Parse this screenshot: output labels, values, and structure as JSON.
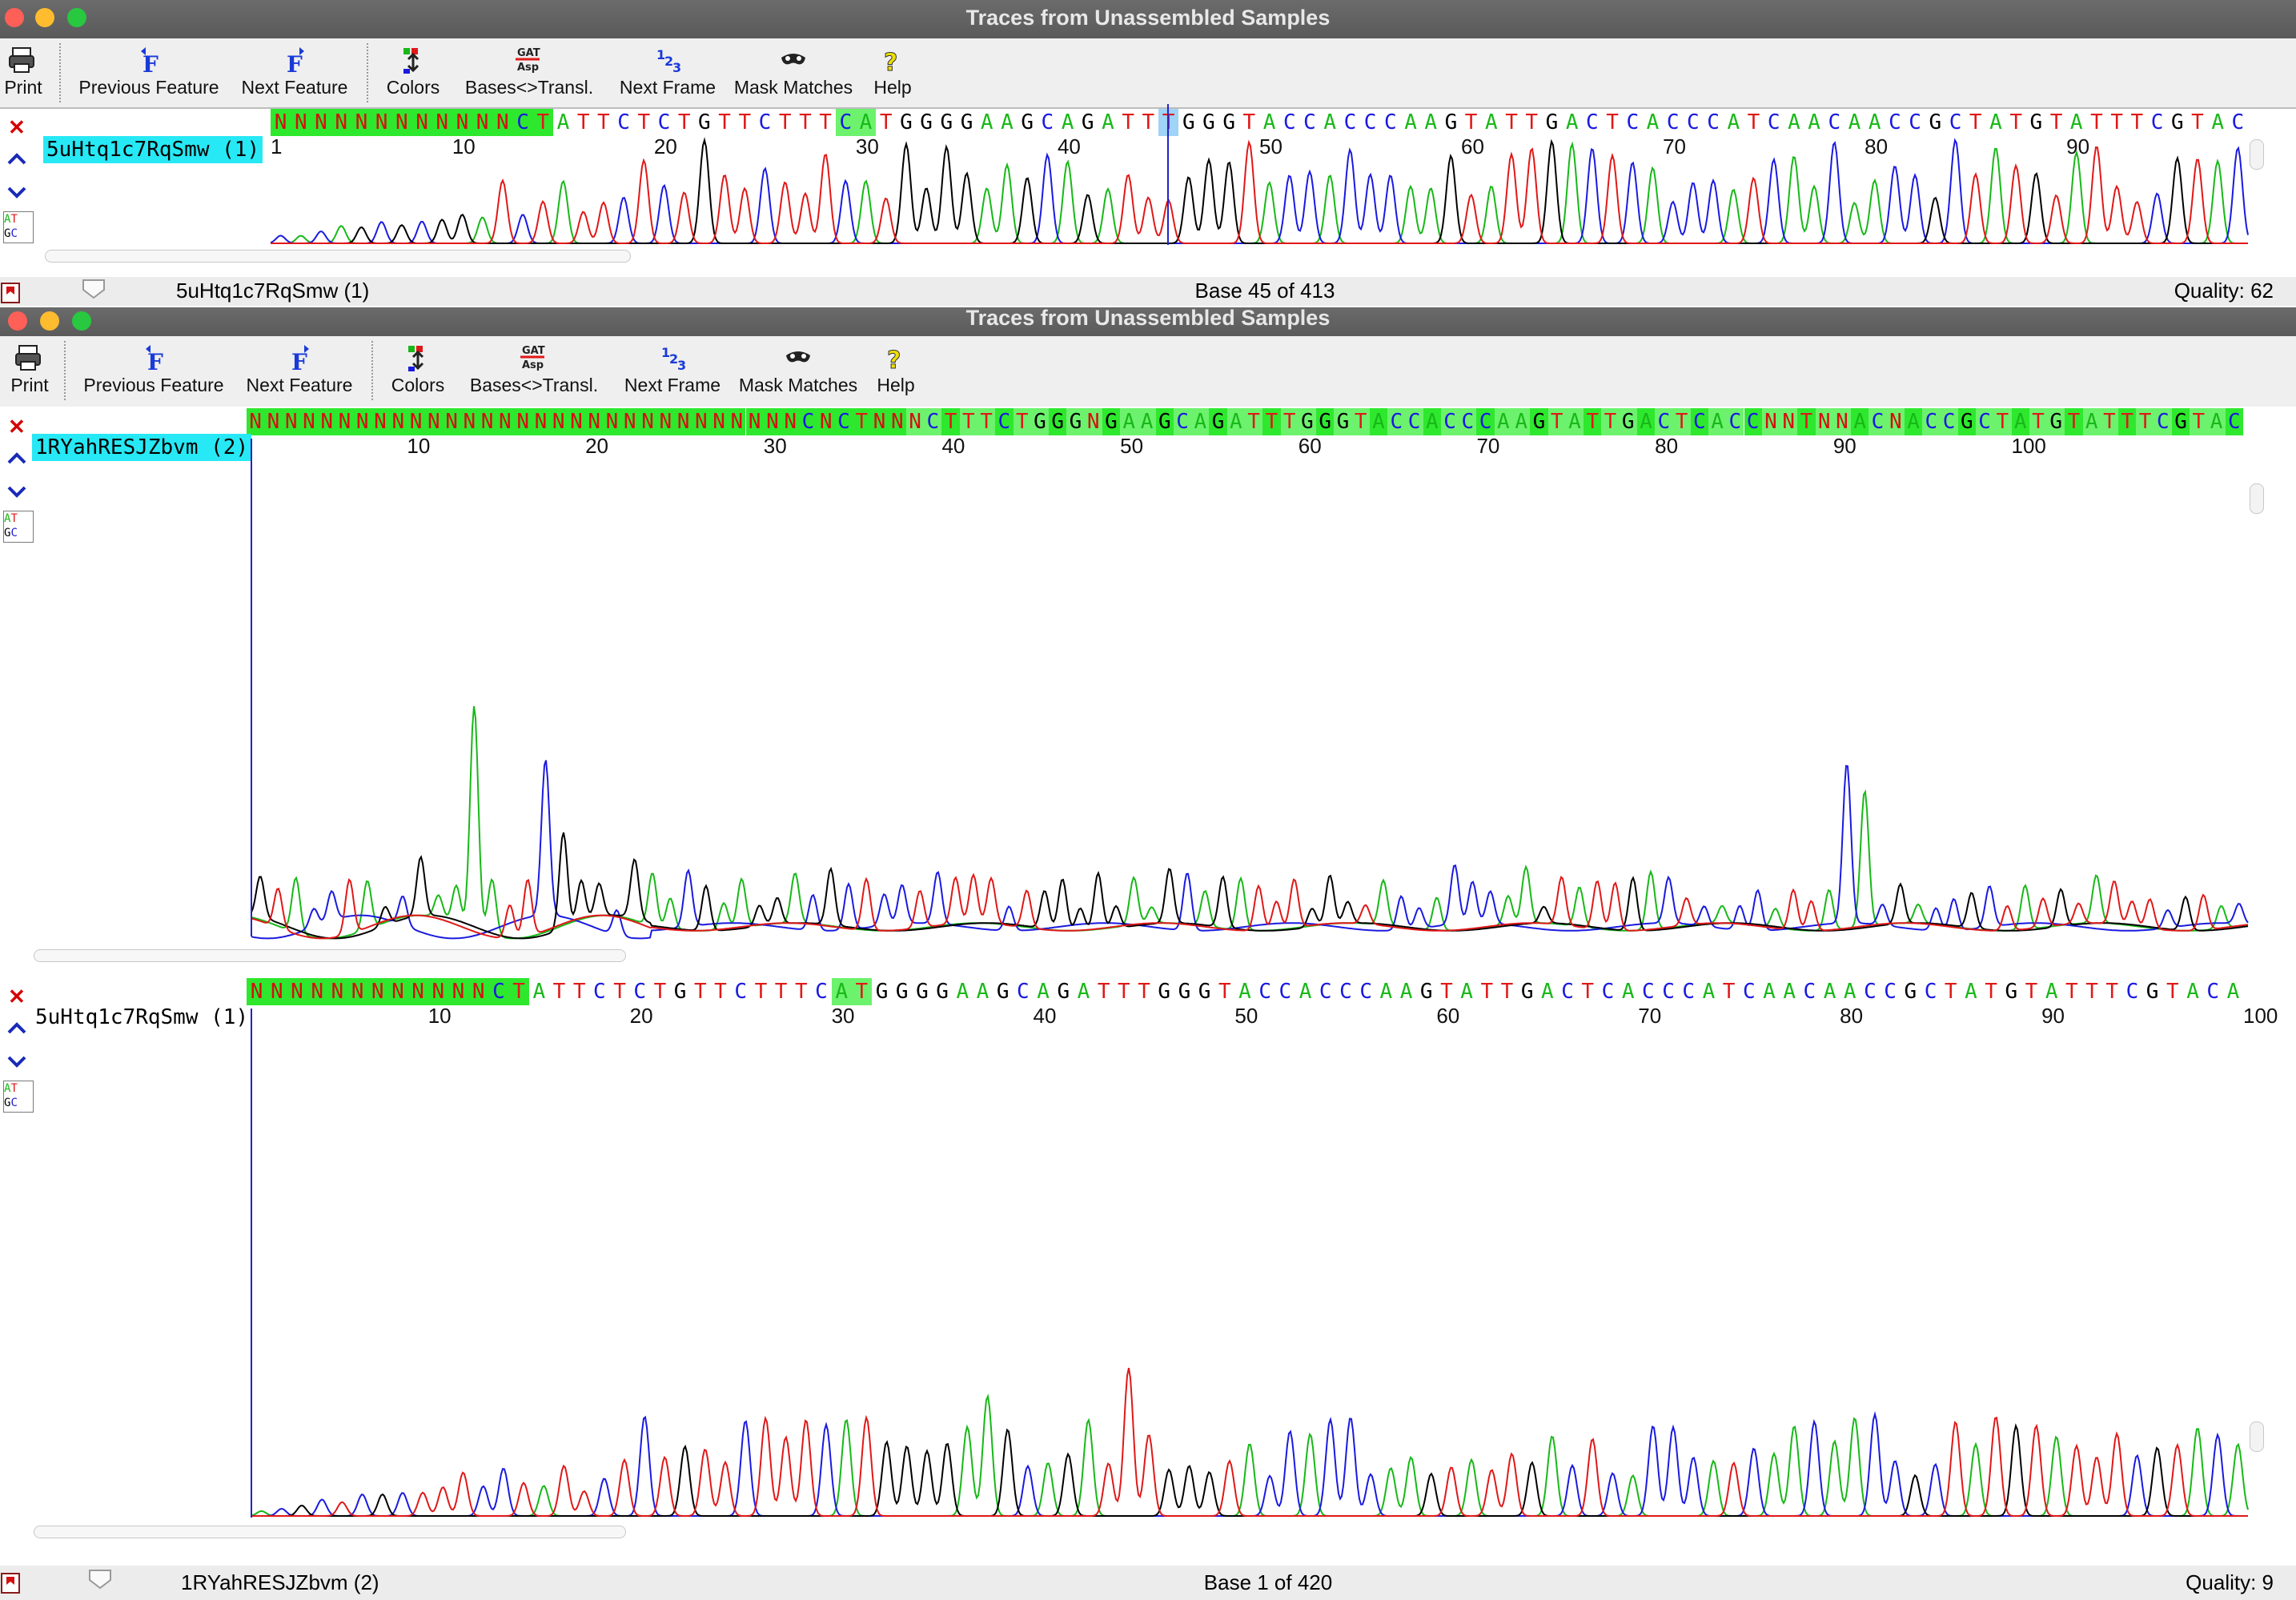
{
  "windows": [
    {
      "title": "Traces from Unassembled Samples",
      "status": {
        "sample": "5uHtq1c7RqSmw (1)",
        "base": "Base 45 of 413",
        "quality": "Quality: 62"
      },
      "lanes": [
        {
          "label": "5uHtq1c7RqSmw (1)",
          "selected": true,
          "sequence": "NNNNNNNNNNNNCTATTCTCTGTTCTTTCATGGGGAAGCAGATTTGGGTACCACCCAAGTATTGACTCACCCATCAACAACCGCTATGTATTTCGTAC",
          "ruler": [
            "1",
            "10",
            "20",
            "30",
            "40",
            "50",
            "60",
            "70",
            "80",
            "90"
          ],
          "cursor_base": 45
        }
      ]
    },
    {
      "title": "Traces from Unassembled Samples",
      "status": {
        "sample": "1RYahRESJZbvm (2)",
        "base": "Base 1 of 420",
        "quality": "Quality: 9"
      },
      "lanes": [
        {
          "label": "1RYahRESJZbvm (2)",
          "selected": true,
          "sequence": "NNNNNNNNNNNNNNNNNNNNNNNNNNNNNNNCNCTNNNCTTTCTGGGNGAAGCAGATTTGGGTACCACCCAAGTATTGACTCACCNNTNNACNACCGCTATGTATTTCGTAC",
          "ruler": [
            "10",
            "20",
            "30",
            "40",
            "50",
            "60",
            "70",
            "80",
            "90",
            "100"
          ],
          "cursor_base": 1
        },
        {
          "label": "5uHtq1c7RqSmw (1)",
          "selected": false,
          "sequence": "NNNNNNNNNNNNCTATTCTCTGTTCTTTCATGGGGAAGCAGATTTGGGTACCACCCAAGTATTGACTCACCCATCAACAACCGCTATGTATTTCGTACA",
          "ruler": [
            "10",
            "20",
            "30",
            "40",
            "50",
            "60",
            "70",
            "80",
            "90",
            "100"
          ],
          "cursor_base": 1
        }
      ]
    }
  ],
  "toolbar": {
    "print": "Print",
    "previous_feature": "Previous Feature",
    "next_feature": "Next Feature",
    "colors": "Colors",
    "bases_transl": "Bases<>Transl.",
    "next_frame": "Next Frame",
    "mask_matches": "Mask Matches",
    "help": "Help"
  },
  "icons": {
    "print": "printer-icon",
    "previous_feature": "previous-feature-icon",
    "next_feature": "next-feature-icon",
    "colors": "colors-icon",
    "bases_transl": "translate-icon",
    "next_frame": "next-frame-icon",
    "mask_matches": "mask-icon",
    "help": "help-icon",
    "close_lane": "close-icon",
    "move_up": "chevron-up-icon",
    "move_down": "chevron-down-icon",
    "show_bases": "atgc-icon"
  },
  "colors": {
    "A": "#18b818",
    "C": "#1a1ae0",
    "G": "#000000",
    "T": "#e01818",
    "N": "#d41010",
    "highlight_bright": "#2ee82e",
    "highlight_pale": "#6df26d",
    "label_selected": "#27e8f5",
    "cursor": "#2222cc"
  }
}
